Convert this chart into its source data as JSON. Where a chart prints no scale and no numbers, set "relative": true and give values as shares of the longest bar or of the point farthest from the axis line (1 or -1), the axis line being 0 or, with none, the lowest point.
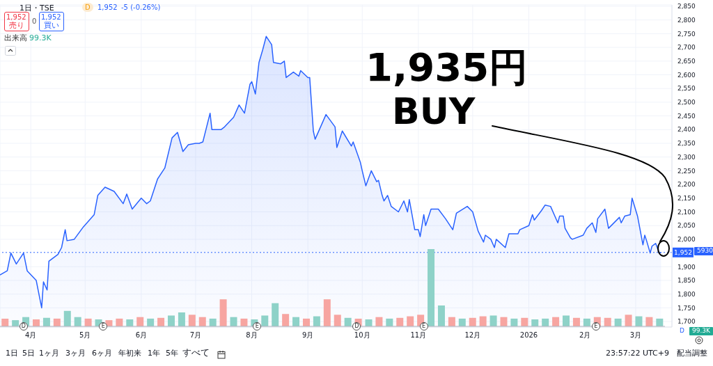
{
  "chart_data": [
    {
      "type": "area",
      "title": "1日・TSE",
      "color": "#2962ff",
      "x": [
        "2025-03-15",
        "2025-03-19",
        "2025-03-21",
        "2025-03-24",
        "2025-03-28",
        "2025-03-30",
        "2025-04-04",
        "2025-04-07",
        "2025-04-08",
        "2025-04-10",
        "2025-04-11",
        "2025-04-16",
        "2025-04-18",
        "2025-04-20",
        "2025-04-21",
        "2025-04-25",
        "2025-04-30",
        "2025-05-06",
        "2025-05-08",
        "2025-05-12",
        "2025-05-17",
        "2025-05-22",
        "2025-05-24",
        "2025-05-27",
        "2025-06-01",
        "2025-06-04",
        "2025-06-06",
        "2025-06-10",
        "2025-06-14",
        "2025-06-18",
        "2025-06-21",
        "2025-06-24",
        "2025-06-27",
        "2025-07-01",
        "2025-07-03",
        "2025-07-05",
        "2025-07-09",
        "2025-07-10",
        "2025-07-15",
        "2025-07-17",
        "2025-07-22",
        "2025-07-25",
        "2025-07-28",
        "2025-07-31",
        "2025-08-01",
        "2025-08-03",
        "2025-08-05",
        "2025-08-07",
        "2025-08-09",
        "2025-08-12",
        "2025-08-13",
        "2025-08-17",
        "2025-08-19",
        "2025-08-20",
        "2025-08-24",
        "2025-08-27",
        "2025-08-28",
        "2025-09-01",
        "2025-09-02",
        "2025-09-04",
        "2025-09-05",
        "2025-09-11",
        "2025-09-16",
        "2025-09-17",
        "2025-09-20",
        "2025-09-25",
        "2025-09-26",
        "2025-09-30",
        "2025-10-01",
        "2025-10-03",
        "2025-10-06",
        "2025-10-09",
        "2025-10-10",
        "2025-10-12",
        "2025-10-13",
        "2025-10-15",
        "2025-10-17",
        "2025-10-21",
        "2025-10-24",
        "2025-10-26",
        "2025-10-27",
        "2025-10-30",
        "2025-11-01",
        "2025-11-02",
        "2025-11-04",
        "2025-11-05",
        "2025-11-08",
        "2025-11-12",
        "2025-11-16",
        "2025-11-20",
        "2025-11-22",
        "2025-11-28",
        "2025-12-01",
        "2025-12-04",
        "2025-12-07",
        "2025-12-08",
        "2025-12-11",
        "2025-12-13",
        "2025-12-14",
        "2025-12-19",
        "2025-12-21",
        "2025-12-26",
        "2025-12-27",
        "2026-01-01",
        "2026-01-03",
        "2026-01-04",
        "2026-01-08",
        "2026-01-10",
        "2026-01-13",
        "2026-01-17",
        "2026-01-18",
        "2026-01-20",
        "2026-01-21",
        "2026-01-24",
        "2026-01-25",
        "2026-01-31",
        "2026-02-02",
        "2026-02-05",
        "2026-02-07",
        "2026-02-08",
        "2026-02-12",
        "2026-02-14",
        "2026-02-20",
        "2026-02-21",
        "2026-02-23",
        "2026-02-26",
        "2026-02-27",
        "2026-03-02",
        "2026-03-05",
        "2026-03-06",
        "2026-03-07",
        "2026-03-09",
        "2026-03-10",
        "2026-03-12",
        "2026-03-14",
        "2026-03-15"
      ],
      "values": [
        1870,
        1885,
        1950,
        1910,
        1950,
        1885,
        1850,
        1750,
        1845,
        1815,
        1920,
        1945,
        1970,
        2035,
        1995,
        2000,
        2045,
        2090,
        2160,
        2190,
        2175,
        2130,
        2165,
        2110,
        2150,
        2130,
        2140,
        2220,
        2260,
        2370,
        2390,
        2320,
        2345,
        2350,
        2350,
        2355,
        2460,
        2400,
        2400,
        2410,
        2445,
        2490,
        2460,
        2565,
        2575,
        2530,
        2645,
        2690,
        2740,
        2710,
        2645,
        2640,
        2650,
        2590,
        2610,
        2595,
        2615,
        2590,
        2590,
        2395,
        2365,
        2455,
        2410,
        2335,
        2395,
        2340,
        2355,
        2280,
        2250,
        2195,
        2250,
        2210,
        2215,
        2160,
        2140,
        2160,
        2120,
        2100,
        2140,
        2100,
        2145,
        2035,
        2035,
        2010,
        2090,
        2050,
        2110,
        2110,
        2075,
        2035,
        2095,
        2120,
        2100,
        2030,
        1990,
        2015,
        2000,
        1970,
        2000,
        1970,
        2020,
        2020,
        2035,
        2050,
        2090,
        2070,
        2105,
        2125,
        2120,
        2060,
        2085,
        2085,
        2040,
        2005,
        2000,
        2015,
        2040,
        2060,
        2025,
        2075,
        2110,
        2040,
        2080,
        2060,
        2085,
        2090,
        2150,
        2085,
        1980,
        2015,
        1995,
        1950,
        1975,
        1985,
        1950,
        1952
      ],
      "xlim": [
        "2025-03-15",
        "2026-03-21"
      ],
      "xticks": [
        {
          "value": "2025-04-01",
          "label": "4月"
        },
        {
          "value": "2025-05-01",
          "label": "5月"
        },
        {
          "value": "2025-06-01",
          "label": "6月"
        },
        {
          "value": "2025-07-01",
          "label": "7月"
        },
        {
          "value": "2025-08-01",
          "label": "8月"
        },
        {
          "value": "2025-09-01",
          "label": "9月"
        },
        {
          "value": "2025-10-01",
          "label": "10月"
        },
        {
          "value": "2025-11-01",
          "label": "11月"
        },
        {
          "value": "2025-12-01",
          "label": "12月"
        },
        {
          "value": "2026-01-01",
          "label": "2026"
        },
        {
          "value": "2026-02-01",
          "label": "2月"
        },
        {
          "value": "2026-03-01",
          "label": "3月"
        }
      ],
      "ylim": [
        1680,
        2855
      ],
      "yticks": [
        {
          "value": 1700,
          "label": "1,700"
        },
        {
          "value": 1750,
          "label": "1,750"
        },
        {
          "value": 1800,
          "label": "1,800"
        },
        {
          "value": 1850,
          "label": "1,850"
        },
        {
          "value": 1900,
          "label": "1,900"
        },
        {
          "value": 2000,
          "label": "2,000"
        },
        {
          "value": 2050,
          "label": "2,050"
        },
        {
          "value": 2100,
          "label": "2,100"
        },
        {
          "value": 2150,
          "label": "2,150"
        },
        {
          "value": 2200,
          "label": "2,200"
        },
        {
          "value": 2250,
          "label": "2,250"
        },
        {
          "value": 2300,
          "label": "2,300"
        },
        {
          "value": 2350,
          "label": "2,350"
        },
        {
          "value": 2400,
          "label": "2,400"
        },
        {
          "value": 2450,
          "label": "2,450"
        },
        {
          "value": 2500,
          "label": "2,500"
        },
        {
          "value": 2550,
          "label": "2,550"
        },
        {
          "value": 2600,
          "label": "2,600"
        },
        {
          "value": 2650,
          "label": "2,650"
        },
        {
          "value": 2700,
          "label": "2,700"
        },
        {
          "value": 2750,
          "label": "2,750"
        },
        {
          "value": 2800,
          "label": "2,800"
        },
        {
          "value": 2850,
          "label": "2,850"
        }
      ],
      "grid": true,
      "ref_lines": [
        {
          "axis": "y",
          "value": 1952,
          "label": "1,952",
          "color": "#2962ff",
          "line_style": "dotted"
        }
      ],
      "annotations": [
        "D",
        "1,952",
        "-5 (-0.26%)",
        "1,952",
        "売り",
        "0",
        "1,952",
        "買い",
        "出来高",
        "99.3K",
        "1,935円",
        "BUY",
        "5930",
        "1日",
        "5日",
        "1ヶ月",
        "3ヶ月",
        "6ヶ月",
        "年初来",
        "1年",
        "5年",
        "すべて",
        "23:57:22 UTC+9",
        "配当調整",
        {
          "text": "D",
          "x": "2025-03-28"
        },
        {
          "text": "E",
          "x": "2025-05-11"
        },
        {
          "text": "E",
          "x": "2025-08-04"
        },
        {
          "text": "D",
          "x": "2025-09-28"
        },
        {
          "text": "E",
          "x": "2025-11-04"
        },
        {
          "text": "E",
          "x": "2026-02-07"
        }
      ]
    },
    {
      "type": "bar",
      "relative": true,
      "categories": [
        null,
        null,
        null,
        null,
        null,
        null,
        null,
        null,
        null,
        null,
        null,
        null,
        null,
        null,
        null,
        null,
        null,
        null,
        null,
        null,
        null,
        null,
        null,
        null,
        null,
        null,
        null,
        null,
        null,
        null,
        null,
        null,
        null,
        null,
        null,
        null,
        null,
        null,
        null,
        null,
        null,
        null,
        null,
        null,
        null,
        null,
        null,
        null,
        null,
        null,
        null,
        null,
        null,
        null,
        null,
        null,
        null,
        null,
        null,
        null,
        null,
        null,
        null,
        null
      ],
      "values": [
        0.1,
        0.08,
        0.12,
        0.09,
        0.11,
        0.1,
        0.2,
        0.12,
        0.1,
        0.09,
        0.08,
        0.1,
        0.09,
        0.12,
        0.1,
        0.11,
        0.14,
        0.18,
        0.15,
        0.12,
        0.1,
        0.35,
        0.12,
        0.1,
        0.09,
        0.14,
        0.3,
        0.16,
        0.12,
        0.1,
        0.13,
        0.35,
        0.15,
        0.11,
        0.1,
        0.09,
        0.12,
        0.1,
        0.11,
        0.13,
        0.15,
        1,
        0.27,
        0.12,
        0.1,
        0.11,
        0.13,
        0.14,
        0.12,
        0.1,
        0.11,
        0.09,
        0.1,
        0.12,
        0.14,
        0.11,
        0.1,
        0.12,
        0.11,
        0.1,
        0.15,
        0.13,
        0.12,
        0.1
      ],
      "colors": [
        "#f7a5a1",
        "#8ed2c8",
        "#8ed2c8",
        "#f7a5a1",
        "#8ed2c8",
        "#f7a5a1",
        "#8ed2c8",
        "#8ed2c8",
        "#f7a5a1",
        "#8ed2c8",
        "#f7a5a1",
        "#f7a5a1",
        "#8ed2c8",
        "#f7a5a1",
        "#8ed2c8",
        "#f7a5a1",
        "#8ed2c8",
        "#8ed2c8",
        "#f7a5a1",
        "#f7a5a1",
        "#8ed2c8",
        "#f7a5a1",
        "#8ed2c8",
        "#f7a5a1",
        "#8ed2c8",
        "#8ed2c8",
        "#8ed2c8",
        "#f7a5a1",
        "#8ed2c8",
        "#f7a5a1",
        "#8ed2c8",
        "#f7a5a1",
        "#f7a5a1",
        "#8ed2c8",
        "#f7a5a1",
        "#8ed2c8",
        "#f7a5a1",
        "#8ed2c8",
        "#f7a5a1",
        "#f7a5a1",
        "#f7a5a1",
        "#8ed2c8",
        "#8ed2c8",
        "#f7a5a1",
        "#8ed2c8",
        "#f7a5a1",
        "#f7a5a1",
        "#8ed2c8",
        "#f7a5a1",
        "#8ed2c8",
        "#f7a5a1",
        "#8ed2c8",
        "#8ed2c8",
        "#f7a5a1",
        "#8ed2c8",
        "#f7a5a1",
        "#8ed2c8",
        "#f7a5a1",
        "#f7a5a1",
        "#8ed2c8",
        "#f7a5a1",
        "#8ed2c8",
        "#f7a5a1",
        "#8ed2c8"
      ],
      "annotations": [
        "99.3K",
        "D"
      ]
    }
  ]
}
